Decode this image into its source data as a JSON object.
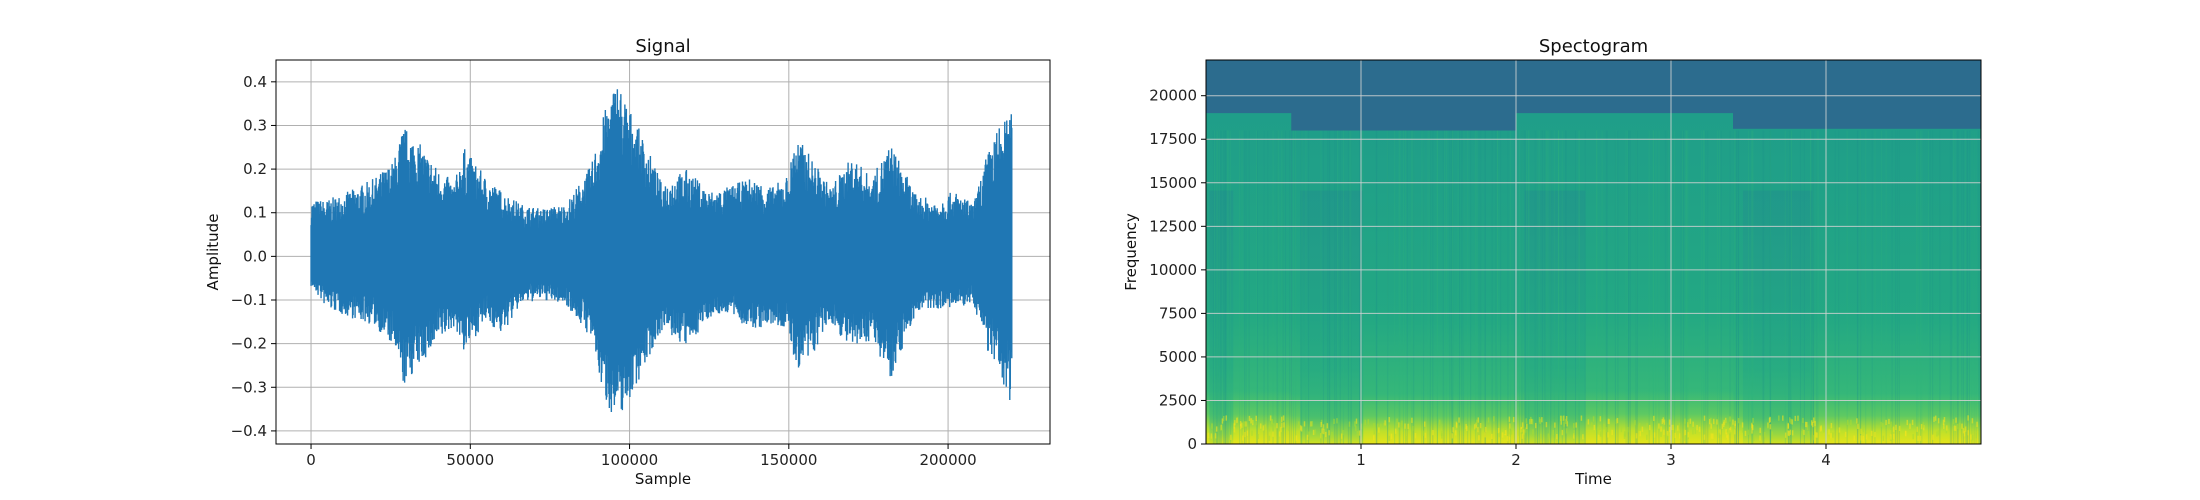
{
  "chart_data": [
    {
      "type": "line",
      "title": "Signal",
      "xlabel": "Sample",
      "ylabel": "Amplitude",
      "xlim": [
        -11000,
        232000
      ],
      "ylim": [
        -0.43,
        0.45
      ],
      "x_ticks": [
        0,
        50000,
        100000,
        150000,
        200000
      ],
      "x_tick_labels": [
        "0",
        "50000",
        "100000",
        "150000",
        "200000"
      ],
      "y_ticks": [
        -0.4,
        -0.3,
        -0.2,
        -0.1,
        0.0,
        0.1,
        0.2,
        0.3,
        0.4
      ],
      "y_tick_labels": [
        "−0.4",
        "−0.3",
        "−0.2",
        "−0.1",
        "0.0",
        "0.1",
        "0.2",
        "0.3",
        "0.4"
      ],
      "grid": true,
      "series_color": "#1f77b4",
      "envelope": {
        "x": [
          0,
          5000,
          12000,
          20000,
          26000,
          29000,
          33000,
          40000,
          45000,
          48000,
          55000,
          60000,
          66000,
          72000,
          80000,
          88000,
          92000,
          96000,
          100000,
          105000,
          110000,
          118000,
          125000,
          131000,
          138000,
          145000,
          150000,
          152000,
          156000,
          163000,
          170000,
          176000,
          182000,
          190000,
          196000,
          202000,
          208000,
          212000,
          216000,
          220000
        ],
        "upper": [
          0.13,
          0.13,
          0.15,
          0.18,
          0.22,
          0.3,
          0.27,
          0.2,
          0.17,
          0.25,
          0.18,
          0.15,
          0.12,
          0.11,
          0.12,
          0.21,
          0.33,
          0.41,
          0.34,
          0.26,
          0.17,
          0.2,
          0.15,
          0.16,
          0.18,
          0.16,
          0.19,
          0.28,
          0.24,
          0.16,
          0.23,
          0.18,
          0.26,
          0.14,
          0.13,
          0.15,
          0.12,
          0.23,
          0.3,
          0.33
        ],
        "lower": [
          -0.07,
          -0.12,
          -0.14,
          -0.16,
          -0.21,
          -0.3,
          -0.26,
          -0.2,
          -0.16,
          -0.22,
          -0.15,
          -0.18,
          -0.11,
          -0.1,
          -0.11,
          -0.19,
          -0.33,
          -0.38,
          -0.33,
          -0.25,
          -0.17,
          -0.21,
          -0.14,
          -0.13,
          -0.17,
          -0.16,
          -0.17,
          -0.26,
          -0.25,
          -0.15,
          -0.22,
          -0.19,
          -0.28,
          -0.13,
          -0.12,
          -0.12,
          -0.11,
          -0.21,
          -0.28,
          -0.34
        ]
      }
    },
    {
      "type": "heatmap",
      "title": "Spectogram",
      "xlabel": "Time",
      "ylabel": "Frequency",
      "xlim": [
        0.0,
        5.0
      ],
      "ylim": [
        0,
        22050
      ],
      "x_ticks": [
        1,
        2,
        3,
        4
      ],
      "x_tick_labels": [
        "1",
        "2",
        "3",
        "4"
      ],
      "y_ticks": [
        0,
        2500,
        5000,
        7500,
        10000,
        12500,
        15000,
        17500,
        20000
      ],
      "y_tick_labels": [
        "0",
        "2500",
        "5000",
        "7500",
        "10000",
        "12500",
        "15000",
        "17500",
        "20000"
      ],
      "grid": true,
      "colormap": "viridis",
      "time_segments": [
        {
          "t0": 0.0,
          "t1": 0.55,
          "lowpass_cutoff_hz": 19000
        },
        {
          "t0": 0.55,
          "t1": 2.0,
          "lowpass_cutoff_hz": 18000
        },
        {
          "t0": 2.0,
          "t1": 3.4,
          "lowpass_cutoff_hz": 19000
        },
        {
          "t0": 3.4,
          "t1": 5.0,
          "lowpass_cutoff_hz": 18100
        }
      ]
    }
  ]
}
